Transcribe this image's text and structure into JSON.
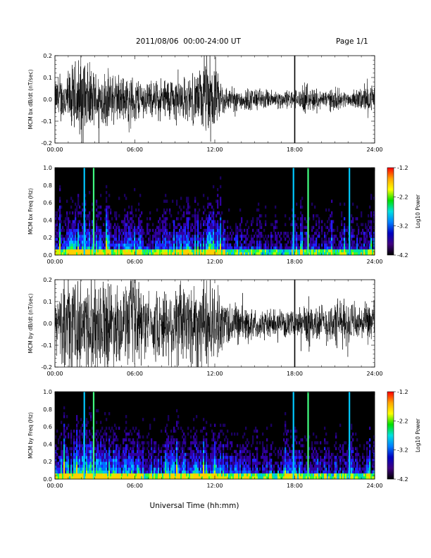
{
  "header": {
    "title": "2011/08/06  00:00-24:00 UT",
    "page": "Page 1/1"
  },
  "footer": {
    "xlabel": "Universal Time (hh:mm)"
  },
  "colorbar": {
    "label": "Log10 Power",
    "ticks": [
      "-1.2",
      "-2.2",
      "-3.2",
      "-4.2"
    ],
    "colors": [
      "#ff0000",
      "#ffa500",
      "#ffff00",
      "#00e000",
      "#00e0e0",
      "#0080ff",
      "#0000c0",
      "#400080",
      "#000000"
    ]
  },
  "chart_data": [
    {
      "type": "line",
      "ylabel": "MCM bx dB/dt (nT/sec)",
      "xlim": [
        0,
        24
      ],
      "ylim": [
        -0.2,
        0.2
      ],
      "xticks": [
        "00:00",
        "06:00",
        "12:00",
        "18:00",
        "24:00"
      ],
      "yticks": [
        "0.2",
        "0.1",
        "0.0",
        "-0.1",
        "-0.2"
      ],
      "envelope": {
        "hours": [
          0,
          1,
          2,
          2.5,
          3,
          4,
          5,
          6,
          7,
          8,
          9,
          10,
          11,
          11.7,
          12,
          13,
          14,
          15,
          16,
          17,
          18,
          19,
          20,
          21,
          22,
          23,
          24
        ],
        "amplitude": [
          0.08,
          0.12,
          0.2,
          0.15,
          0.12,
          0.12,
          0.1,
          0.1,
          0.07,
          0.09,
          0.1,
          0.09,
          0.13,
          0.2,
          0.12,
          0.05,
          0.05,
          0.05,
          0.04,
          0.04,
          0.04,
          0.06,
          0.04,
          0.05,
          0.03,
          0.05,
          0.06
        ]
      },
      "spike_hours": [
        18.0
      ]
    },
    {
      "type": "heatmap",
      "ylabel": "MCM bx Freq (Hz)",
      "xlim": [
        0,
        24
      ],
      "ylim": [
        0.0,
        1.0
      ],
      "zlim": [
        -4.2,
        -1.2
      ],
      "xticks": [
        "00:00",
        "06:00",
        "12:00",
        "18:00",
        "24:00"
      ],
      "yticks": [
        "1.0",
        "0.8",
        "0.6",
        "0.4",
        "0.2",
        "0.0"
      ],
      "activity_hours": [
        0,
        1,
        2,
        3,
        4,
        5,
        6,
        7,
        8,
        9,
        10,
        11,
        12,
        13,
        14,
        15,
        16,
        17,
        18,
        19,
        20,
        21,
        22,
        23,
        24
      ],
      "activity_level": [
        0.5,
        0.6,
        0.8,
        0.7,
        0.7,
        0.6,
        0.6,
        0.4,
        0.5,
        0.6,
        0.5,
        0.7,
        0.8,
        0.4,
        0.4,
        0.4,
        0.35,
        0.35,
        0.4,
        0.4,
        0.35,
        0.4,
        0.35,
        0.4,
        0.5
      ],
      "vertical_lines": [
        {
          "hour": 2.2,
          "color": "#00c8ff"
        },
        {
          "hour": 2.9,
          "color": "#40ff80"
        },
        {
          "hour": 17.9,
          "color": "#00c8ff"
        },
        {
          "hour": 19.0,
          "color": "#40ff80"
        },
        {
          "hour": 22.1,
          "color": "#00c8ff"
        }
      ]
    },
    {
      "type": "line",
      "ylabel": "MCM by dB/dt (nT/sec)",
      "xlim": [
        0,
        24
      ],
      "ylim": [
        -0.2,
        0.2
      ],
      "xticks": [
        "00:00",
        "06:00",
        "12:00",
        "18:00",
        "24:00"
      ],
      "yticks": [
        "0.2",
        "0.1",
        "0.0",
        "-0.1",
        "-0.2"
      ],
      "envelope": {
        "hours": [
          0,
          1,
          2,
          2.5,
          3,
          4,
          5,
          6,
          7,
          8,
          9,
          10,
          11,
          11.7,
          12,
          13,
          14,
          15,
          16,
          17,
          18,
          19,
          20,
          21,
          22,
          23,
          24
        ],
        "amplitude": [
          0.12,
          0.2,
          0.2,
          0.2,
          0.2,
          0.2,
          0.15,
          0.2,
          0.12,
          0.15,
          0.18,
          0.2,
          0.2,
          0.2,
          0.15,
          0.1,
          0.08,
          0.06,
          0.06,
          0.05,
          0.05,
          0.1,
          0.08,
          0.1,
          0.1,
          0.07,
          0.1
        ]
      },
      "spike_hours": [
        18.0
      ]
    },
    {
      "type": "heatmap",
      "ylabel": "MCM by Freq (Hz)",
      "xlim": [
        0,
        24
      ],
      "ylim": [
        0.0,
        1.0
      ],
      "zlim": [
        -4.2,
        -1.2
      ],
      "xticks": [
        "00:00",
        "06:00",
        "12:00",
        "18:00",
        "24:00"
      ],
      "yticks": [
        "1.0",
        "0.8",
        "0.6",
        "0.4",
        "0.2",
        "0.0"
      ],
      "activity_hours": [
        0,
        1,
        2,
        3,
        4,
        5,
        6,
        7,
        8,
        9,
        10,
        11,
        12,
        13,
        14,
        15,
        16,
        17,
        18,
        19,
        20,
        21,
        22,
        23,
        24
      ],
      "activity_level": [
        0.6,
        0.7,
        0.9,
        0.8,
        0.8,
        0.7,
        0.8,
        0.5,
        0.6,
        0.7,
        0.6,
        0.7,
        0.8,
        0.5,
        0.5,
        0.5,
        0.45,
        0.45,
        0.5,
        0.5,
        0.45,
        0.5,
        0.45,
        0.5,
        0.6
      ],
      "vertical_lines": [
        {
          "hour": 2.2,
          "color": "#00c8ff"
        },
        {
          "hour": 2.9,
          "color": "#40ff80"
        },
        {
          "hour": 17.9,
          "color": "#00c8ff"
        },
        {
          "hour": 19.0,
          "color": "#40ff80"
        },
        {
          "hour": 22.1,
          "color": "#00c8ff"
        }
      ]
    }
  ]
}
